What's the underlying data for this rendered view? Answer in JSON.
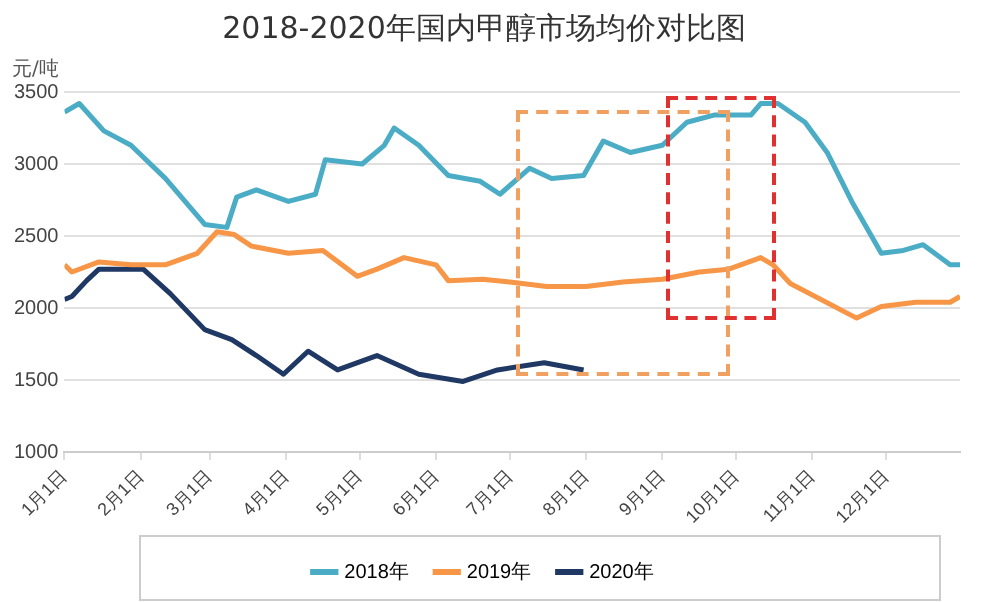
{
  "chart_data": {
    "type": "line",
    "title": "2018-2020年国内甲醇市场均价对比图",
    "ylabel": "元/吨",
    "xlim": [
      "--01-01",
      "--12-31"
    ],
    "xticks": [
      {
        "value": "--01-01",
        "label": "1月1日"
      },
      {
        "value": "--02-01",
        "label": "2月1日"
      },
      {
        "value": "--03-01",
        "label": "3月1日"
      },
      {
        "value": "--04-01",
        "label": "4月1日"
      },
      {
        "value": "--05-01",
        "label": "5月1日"
      },
      {
        "value": "--06-01",
        "label": "6月1日"
      },
      {
        "value": "--07-01",
        "label": "7月1日"
      },
      {
        "value": "--08-01",
        "label": "8月1日"
      },
      {
        "value": "--09-01",
        "label": "9月1日"
      },
      {
        "value": "--10-01",
        "label": "10月1日"
      },
      {
        "value": "--11-01",
        "label": "11月1日"
      },
      {
        "value": "--12-01",
        "label": "12月1日"
      }
    ],
    "ylim": [
      1000,
      3500
    ],
    "yticks": [
      1000,
      1500,
      2000,
      2500,
      3000,
      3500
    ],
    "grid": "y",
    "legend": "bottom",
    "marker": "none",
    "line_style": "solid",
    "series": [
      {
        "name": "2018年",
        "color": "#4bacc6",
        "x": [
          "--01-01",
          "--01-07",
          "--01-17",
          "--01-28",
          "--02-11",
          "--02-27",
          "--03-08",
          "--03-12",
          "--03-20",
          "--04-02",
          "--04-13",
          "--04-17",
          "--05-02",
          "--05-11",
          "--05-15",
          "--05-25",
          "--06-06",
          "--06-19",
          "--06-27",
          "--07-09",
          "--07-18",
          "--07-31",
          "--08-08",
          "--08-19",
          "--09-01",
          "--09-11",
          "--09-22",
          "--10-07",
          "--10-11",
          "--10-18",
          "--10-29",
          "--11-07",
          "--11-17",
          "--11-29",
          "--12-08",
          "--12-16",
          "--12-27",
          "--12-31"
        ],
        "values": [
          3360,
          3420,
          3230,
          3130,
          2900,
          2580,
          2560,
          2770,
          2820,
          2740,
          2790,
          3030,
          3000,
          3130,
          3250,
          3130,
          2920,
          2880,
          2790,
          2970,
          2900,
          2920,
          3160,
          3080,
          3130,
          3290,
          3340,
          3340,
          3420,
          3420,
          3290,
          3080,
          2740,
          2380,
          2400,
          2440,
          2300,
          2300
        ]
      },
      {
        "name": "2019年",
        "color": "#f79646",
        "x": [
          "--01-01",
          "--01-04",
          "--01-15",
          "--01-28",
          "--02-11",
          "--02-24",
          "--03-04",
          "--03-11",
          "--03-18",
          "--04-02",
          "--04-16",
          "--04-30",
          "--05-08",
          "--05-19",
          "--06-01",
          "--06-06",
          "--06-20",
          "--07-01",
          "--07-16",
          "--08-01",
          "--08-16",
          "--09-01",
          "--09-16",
          "--09-28",
          "--10-11",
          "--10-16",
          "--10-23",
          "--11-19",
          "--11-29",
          "--12-13",
          "--12-27",
          "--12-31"
        ],
        "values": [
          2300,
          2250,
          2320,
          2300,
          2300,
          2380,
          2530,
          2510,
          2430,
          2380,
          2400,
          2220,
          2270,
          2350,
          2300,
          2190,
          2200,
          2180,
          2150,
          2150,
          2180,
          2200,
          2250,
          2270,
          2350,
          2300,
          2170,
          1930,
          2010,
          2040,
          2040,
          2080
        ]
      },
      {
        "name": "2020年",
        "color": "#1f3864",
        "x": [
          "--01-01",
          "--01-04",
          "--01-10",
          "--01-15",
          "--02-02",
          "--02-13",
          "--02-27",
          "--03-10",
          "--03-20",
          "--03-31",
          "--04-10",
          "--04-22",
          "--05-08",
          "--05-25",
          "--06-12",
          "--06-26",
          "--07-15",
          "--07-31"
        ],
        "values": [
          2060,
          2080,
          2190,
          2270,
          2270,
          2100,
          1850,
          1780,
          1670,
          1540,
          1700,
          1570,
          1670,
          1540,
          1490,
          1570,
          1620,
          1570
        ]
      }
    ]
  }
}
